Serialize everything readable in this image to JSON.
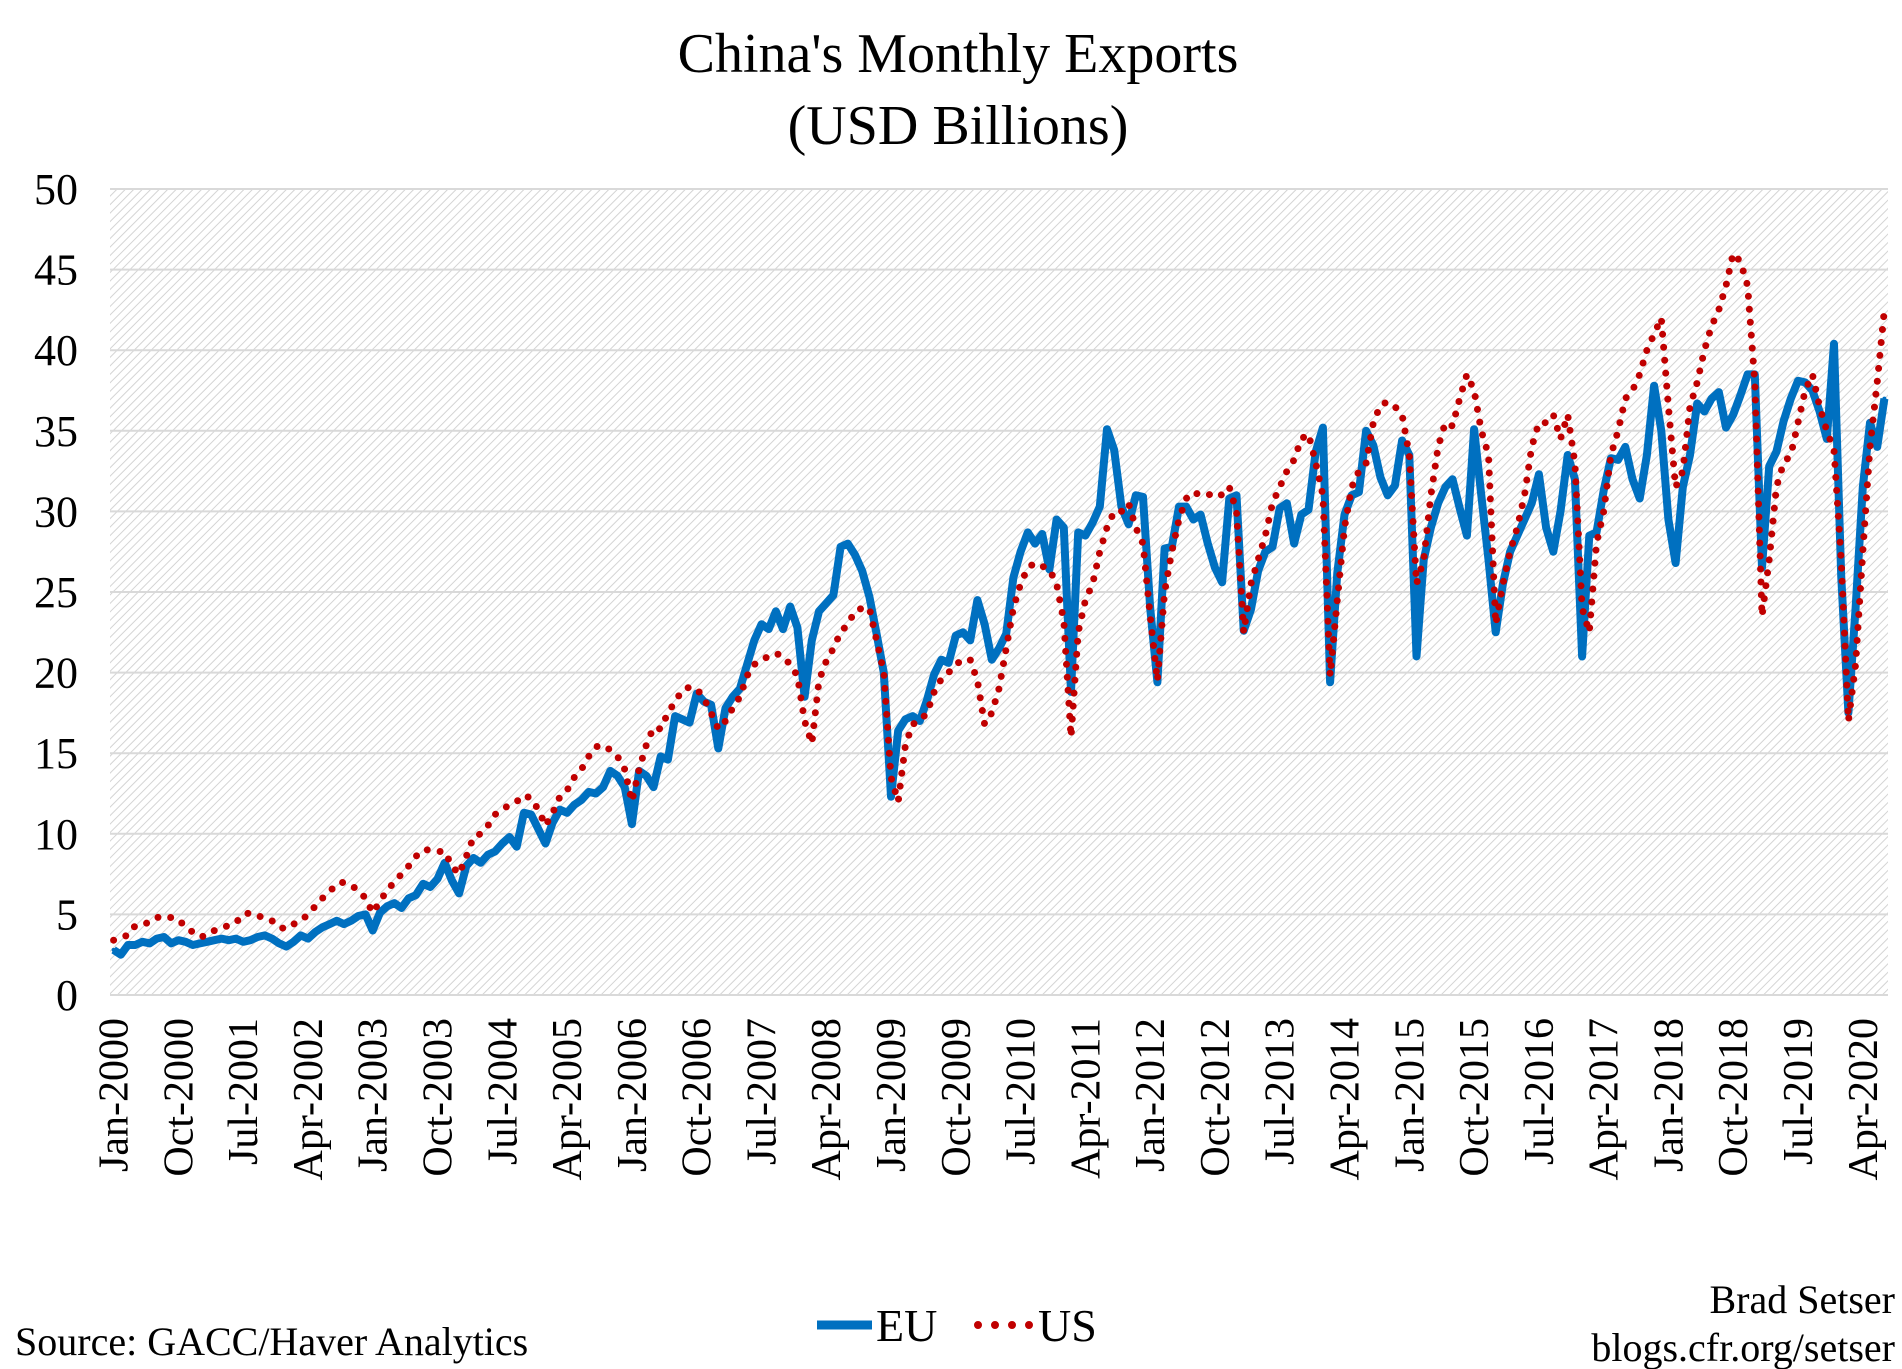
{
  "chart_data": {
    "type": "line",
    "title": "China's Monthly Exports",
    "subtitle": "(USD Billions)",
    "xlabel": "",
    "ylabel": "",
    "ylim": [
      0,
      50
    ],
    "y_ticks": [
      "0",
      "5",
      "10",
      "15",
      "20",
      "25",
      "30",
      "35",
      "40",
      "45",
      "50"
    ],
    "x_start": "Jan-2000",
    "x_frequency": "monthly",
    "x_tick_labels": [
      "Jan-2000",
      "Oct-2000",
      "Jul-2001",
      "Apr-2002",
      "Jan-2003",
      "Oct-2003",
      "Jul-2004",
      "Apr-2005",
      "Jan-2006",
      "Oct-2006",
      "Jul-2007",
      "Apr-2008",
      "Jan-2009",
      "Oct-2009",
      "Jul-2010",
      "Apr-2011",
      "Jan-2012",
      "Oct-2012",
      "Jul-2013",
      "Apr-2014",
      "Jan-2015",
      "Oct-2015",
      "Jul-2016",
      "Apr-2017",
      "Jan-2018",
      "Oct-2018",
      "Jul-2019",
      "Apr-2020"
    ],
    "grid": true,
    "legend_placement": "bottom",
    "series": [
      {
        "name": "EU",
        "color": "#0070C0",
        "style": "solid",
        "values": [
          2.8,
          2.5,
          3.1,
          3.1,
          3.3,
          3.2,
          3.5,
          3.6,
          3.2,
          3.4,
          3.3,
          3.1,
          3.2,
          3.3,
          3.4,
          3.5,
          3.4,
          3.5,
          3.3,
          3.4,
          3.6,
          3.7,
          3.5,
          3.2,
          3.0,
          3.3,
          3.7,
          3.5,
          3.9,
          4.2,
          4.4,
          4.6,
          4.4,
          4.6,
          4.9,
          5.0,
          4.0,
          5.1,
          5.5,
          5.7,
          5.4,
          6.0,
          6.2,
          6.9,
          6.7,
          7.2,
          8.2,
          7.1,
          6.3,
          8.0,
          8.5,
          8.2,
          8.7,
          8.9,
          9.4,
          9.8,
          9.2,
          11.3,
          11.2,
          10.3,
          9.4,
          10.7,
          11.5,
          11.3,
          11.8,
          12.1,
          12.6,
          12.5,
          12.9,
          13.9,
          13.6,
          12.9,
          10.6,
          13.9,
          13.6,
          12.9,
          14.8,
          14.6,
          17.3,
          17.1,
          16.9,
          18.7,
          18.2,
          18.0,
          15.3,
          17.8,
          18.5,
          19.0,
          20.5,
          22.0,
          23.0,
          22.7,
          23.8,
          22.7,
          24.1,
          22.8,
          18.5,
          22.0,
          23.8,
          24.3,
          24.8,
          27.8,
          28.0,
          27.3,
          26.3,
          24.7,
          22.4,
          20.0,
          12.3,
          16.4,
          17.1,
          17.3,
          17.0,
          18.3,
          19.9,
          20.8,
          20.6,
          22.3,
          22.5,
          22.0,
          24.5,
          23.0,
          20.8,
          21.5,
          22.4,
          25.9,
          27.5,
          28.7,
          28.0,
          28.6,
          26.4,
          29.5,
          29.0,
          18.8,
          28.7,
          28.5,
          29.3,
          30.3,
          35.1,
          33.8,
          30.3,
          29.2,
          31.0,
          30.9,
          24.0,
          19.4,
          27.7,
          27.8,
          30.3,
          30.3,
          29.5,
          29.8,
          28.0,
          26.5,
          25.6,
          30.8,
          31.0,
          22.6,
          23.9,
          26.3,
          27.5,
          27.8,
          30.2,
          30.5,
          28.0,
          29.8,
          30.1,
          33.7,
          35.2,
          19.4,
          26.2,
          29.8,
          31.0,
          31.2,
          35.0,
          34.1,
          32.1,
          31.0,
          31.6,
          34.4,
          33.5,
          21.0,
          27.0,
          29.0,
          30.5,
          31.5,
          32.0,
          30.2,
          28.5,
          35.1,
          31.0,
          27.0,
          22.5,
          25.5,
          27.5,
          28.5,
          29.5,
          30.5,
          32.3,
          29.0,
          27.5,
          30.0,
          33.5,
          32.0,
          21.0,
          28.5,
          28.7,
          31.3,
          33.3,
          33.2,
          34.0,
          32.0,
          30.8,
          33.5,
          37.8,
          35.0,
          29.5,
          26.8,
          31.5,
          33.5,
          36.7,
          36.2,
          37.0,
          37.4,
          35.2,
          36.0,
          37.2,
          38.5,
          38.5,
          26.5,
          32.8,
          33.7,
          35.6,
          37.0,
          38.1,
          38.0,
          37.5,
          36.2,
          34.5,
          40.4,
          26.0,
          17.5,
          24.0,
          31.5,
          35.5,
          34.0,
          37.0
        ]
      },
      {
        "name": "US",
        "color": "#C00000",
        "style": "dotted",
        "values": [
          3.4,
          3.6,
          3.7,
          4.3,
          4.4,
          4.5,
          4.8,
          4.9,
          4.8,
          4.7,
          4.2,
          3.9,
          3.6,
          3.7,
          4.0,
          4.2,
          4.3,
          4.5,
          5.0,
          5.1,
          4.9,
          4.8,
          4.6,
          4.2,
          4.1,
          4.4,
          4.6,
          5.0,
          5.5,
          6.0,
          6.4,
          6.9,
          7.0,
          6.8,
          6.5,
          6.0,
          5.1,
          5.8,
          6.5,
          7.0,
          7.5,
          8.0,
          8.6,
          9.0,
          9.0,
          8.9,
          8.9,
          8.0,
          7.5,
          8.6,
          9.8,
          10.0,
          10.5,
          11.2,
          11.5,
          11.8,
          12.0,
          12.4,
          12.2,
          11.5,
          10.5,
          11.3,
          12.3,
          12.7,
          13.5,
          14.0,
          14.8,
          15.4,
          15.5,
          15.2,
          14.8,
          14.0,
          12.0,
          14.0,
          15.5,
          16.6,
          16.5,
          17.5,
          18.2,
          18.9,
          19.1,
          19.0,
          18.4,
          17.5,
          16.5,
          17.0,
          17.8,
          18.5,
          19.8,
          20.5,
          20.8,
          21.0,
          21.2,
          21.0,
          20.5,
          19.8,
          17.0,
          15.6,
          19.5,
          20.7,
          21.5,
          22.5,
          23.0,
          23.8,
          24.0,
          24.0,
          22.0,
          20.0,
          13.5,
          12.0,
          15.5,
          16.8,
          17.0,
          17.5,
          18.8,
          19.6,
          20.0,
          20.5,
          20.8,
          20.8,
          19.5,
          16.8,
          17.5,
          19.0,
          21.5,
          24.0,
          25.5,
          26.5,
          26.8,
          26.6,
          26.4,
          25.5,
          23.2,
          16.0,
          22.5,
          24.5,
          25.5,
          27.5,
          29.0,
          30.0,
          30.0,
          30.5,
          29.0,
          28.0,
          23.5,
          19.5,
          25.0,
          27.5,
          29.5,
          30.8,
          31.2,
          31.0,
          31.0,
          31.2,
          31.0,
          31.5,
          30.0,
          22.5,
          25.5,
          27.0,
          28.5,
          30.5,
          31.5,
          32.5,
          33.2,
          34.5,
          34.8,
          33.0,
          31.0,
          19.8,
          24.5,
          29.0,
          31.5,
          32.5,
          33.0,
          35.5,
          36.6,
          36.8,
          36.5,
          36.0,
          33.5,
          25.5,
          27.0,
          31.0,
          34.0,
          35.5,
          35.3,
          37.0,
          38.5,
          37.5,
          35.0,
          33.5,
          23.0,
          25.5,
          27.5,
          29.0,
          31.0,
          34.0,
          35.5,
          35.5,
          36.0,
          34.5,
          36.0,
          33.0,
          24.0,
          22.5,
          28.0,
          30.0,
          33.5,
          35.0,
          37.0,
          37.5,
          38.5,
          40.0,
          41.0,
          42.0,
          36.5,
          31.5,
          32.5,
          36.5,
          38.0,
          40.0,
          41.5,
          42.5,
          44.0,
          46.0,
          45.5,
          44.0,
          38.0,
          23.5,
          27.0,
          31.5,
          33.0,
          33.5,
          35.5,
          37.5,
          38.5,
          36.5,
          35.0,
          33.8,
          27.0,
          17.0,
          20.5,
          27.5,
          34.0,
          38.0,
          42.5
        ]
      }
    ]
  },
  "notes": {
    "source": "Source: GACC/Haver Analytics",
    "author": "Brad Setser",
    "url": "blogs.cfr.org/setser"
  }
}
